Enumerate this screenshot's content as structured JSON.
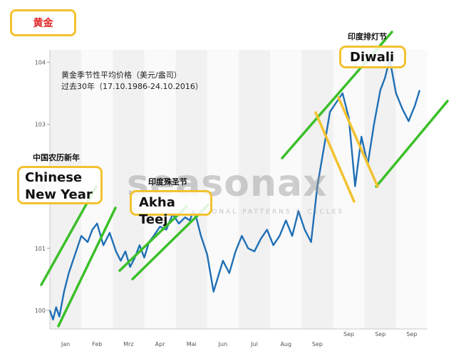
{
  "header": {
    "title": "黄金"
  },
  "description": {
    "line1": "黄金季节性平均价格（美元/盎司）",
    "line2": "过去30年（17.10.1986-24.10.2016）"
  },
  "watermark": {
    "brand": "seasonax",
    "tagline": "SEASONAL PATTERNS & CYCLES"
  },
  "annotations": [
    {
      "cn": "中国农历新年",
      "en_line1": "Chinese",
      "en_line2": "New Year"
    },
    {
      "cn": "印度殊圣节",
      "en_line1": "Akha Teej",
      "en_line2": ""
    },
    {
      "cn": "印度排灯节",
      "en_line1": "Diwali",
      "en_line2": ""
    }
  ],
  "colors": {
    "line": "#1f6fb5",
    "trend": "#3cbf2a",
    "channel": "#f2c230",
    "callout_border": "#f2c230",
    "title_text": "#e02020"
  },
  "chart_data": {
    "type": "line",
    "title": "",
    "xlabel": "",
    "ylabel": "",
    "x_ticks": [
      "Jan",
      "Feb",
      "Mrz",
      "Apr",
      "Mai",
      "Jun",
      "Jul",
      "Aug",
      "Sep",
      "Sep",
      "Sep",
      "Sep"
    ],
    "y_ticks": [
      100,
      101,
      102,
      103,
      104
    ],
    "ylim": [
      99.7,
      104.2
    ],
    "grid": "vertical month bands",
    "series": [
      {
        "name": "",
        "x": [
          0,
          0.1,
          0.2,
          0.3,
          0.45,
          0.6,
          0.8,
          1.0,
          1.2,
          1.35,
          1.5,
          1.7,
          1.9,
          2.1,
          2.25,
          2.4,
          2.55,
          2.7,
          2.85,
          3.0,
          3.15,
          3.3,
          3.5,
          3.7,
          3.9,
          4.1,
          4.3,
          4.45,
          4.55,
          4.65,
          4.8,
          5.0,
          5.2,
          5.35,
          5.5,
          5.7,
          5.9,
          6.1,
          6.3,
          6.5,
          6.7,
          6.9,
          7.1,
          7.3,
          7.5,
          7.7,
          7.9,
          8.1,
          8.3,
          8.5,
          8.7,
          8.9,
          9.1,
          9.3,
          9.5,
          9.7,
          9.9,
          10.1,
          10.3,
          10.5,
          10.65,
          10.8,
          11.0,
          11.2,
          11.4,
          11.6,
          11.75
        ],
        "values": [
          100.0,
          99.85,
          100.05,
          99.9,
          100.3,
          100.6,
          100.9,
          101.2,
          101.1,
          101.3,
          101.4,
          101.05,
          101.25,
          100.95,
          100.8,
          100.95,
          100.7,
          100.85,
          101.05,
          100.85,
          101.1,
          101.2,
          101.35,
          101.3,
          101.55,
          101.4,
          101.5,
          101.45,
          101.6,
          101.5,
          101.2,
          100.9,
          100.3,
          100.55,
          100.8,
          100.6,
          100.95,
          101.2,
          101.0,
          100.95,
          101.15,
          101.3,
          101.05,
          101.2,
          101.45,
          101.2,
          101.6,
          101.3,
          101.1,
          102.0,
          102.6,
          103.2,
          103.35,
          103.5,
          103.1,
          102.0,
          102.8,
          102.35,
          103.0,
          103.55,
          103.75,
          104.05,
          103.5,
          103.25,
          103.05,
          103.3,
          103.55
        ]
      }
    ],
    "overlays": {
      "green_trendlines": 7,
      "yellow_channel_lines": 2
    }
  }
}
